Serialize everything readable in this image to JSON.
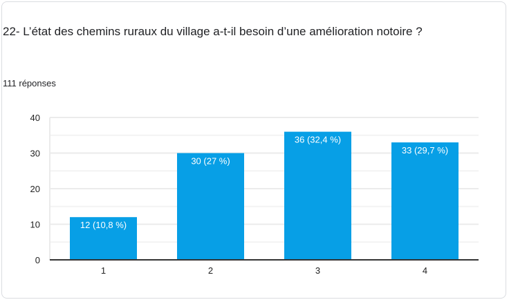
{
  "question": {
    "title": "22- L’état des chemins ruraux du village a-t-il besoin d’une amélioration notoire ?",
    "responses": "111 réponses"
  },
  "chart_data": {
    "type": "bar",
    "title": "",
    "xlabel": "",
    "ylabel": "",
    "categories": [
      "1",
      "2",
      "3",
      "4"
    ],
    "values": [
      12,
      30,
      36,
      33
    ],
    "data_labels": [
      "12 (10,8 %)",
      "30 (27 %)",
      "36 (32,4 %)",
      "33 (29,7 %)"
    ],
    "ylim": [
      0,
      40
    ],
    "yticks": [
      0,
      10,
      20,
      30,
      40
    ],
    "grid": true,
    "legend": "none",
    "bar_color": "#079fe6"
  }
}
